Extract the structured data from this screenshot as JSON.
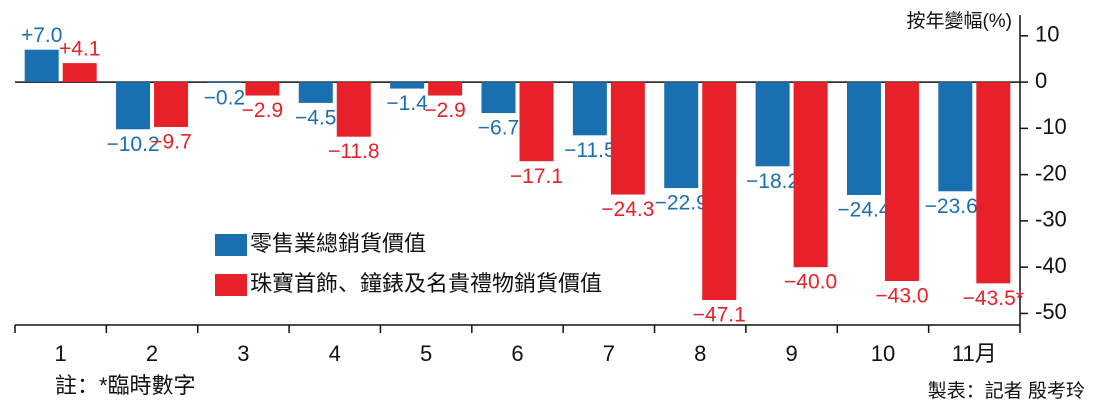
{
  "chart_data": {
    "type": "bar",
    "y_axis_title": "按年變幅(%)",
    "categories": [
      "1",
      "2",
      "3",
      "4",
      "5",
      "6",
      "7",
      "8",
      "9",
      "10",
      "11月"
    ],
    "series": [
      {
        "name": "零售業總銷貨價值",
        "color": "#1a6fb0",
        "values": [
          7.0,
          -10.2,
          -0.2,
          -4.5,
          -1.4,
          -6.7,
          -11.5,
          -22.9,
          -18.2,
          -24.4,
          -23.6
        ],
        "value_labels": [
          "+7.0",
          "−10.2",
          "−0.2",
          "−4.5",
          "−1.4",
          "−6.7",
          "−11.5",
          "−22.9",
          "−18.2",
          "−24.4",
          "−23.6*"
        ]
      },
      {
        "name": "珠寶首飾、鐘錶及名貴禮物銷貨價值",
        "color": "#e8202a",
        "values": [
          4.1,
          -9.7,
          -2.9,
          -11.8,
          -2.9,
          -17.1,
          -24.3,
          -47.1,
          -40.0,
          -43.0,
          -43.5
        ],
        "value_labels": [
          "+4.1",
          "−9.7",
          "−2.9",
          "−11.8",
          "−2.9",
          "−17.1",
          "−24.3",
          "−47.1",
          "−40.0",
          "−43.0",
          "−43.5*"
        ]
      }
    ],
    "ylim": [
      -52.5,
      14.5
    ],
    "yticks": [
      10,
      0,
      -10,
      -20,
      -30,
      -40,
      -50
    ],
    "grid": false,
    "note": "註：*臨時數字",
    "credit": "製表：記者 殷考玲"
  }
}
